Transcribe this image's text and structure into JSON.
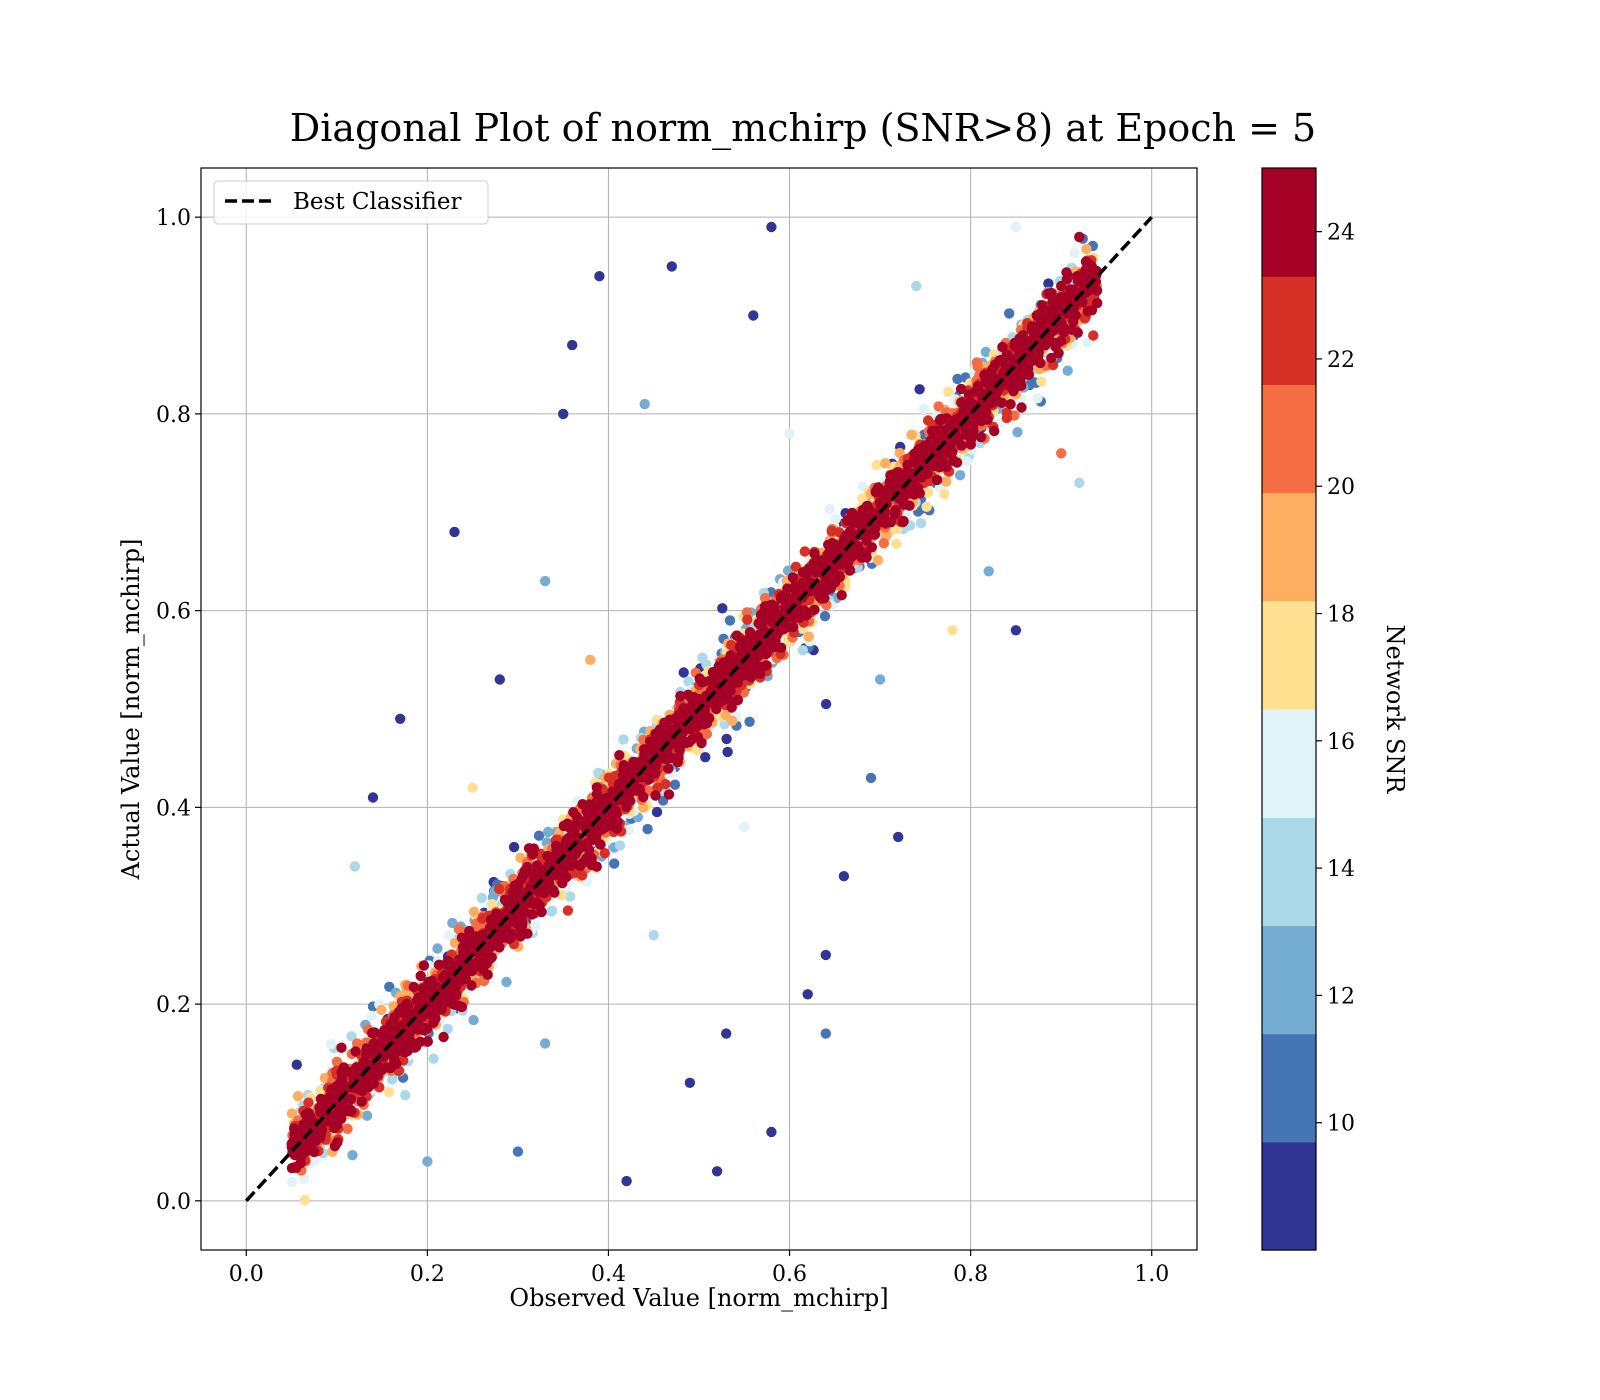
{
  "chart_data": {
    "type": "scatter",
    "title": "Diagonal Plot of norm_mchirp (SNR>8) at Epoch = 5",
    "xlabel": "Observed Value [norm_mchirp]",
    "ylabel": "Actual Value [norm_mchirp]",
    "xlim": [
      -0.05,
      1.05
    ],
    "ylim": [
      -0.05,
      1.05
    ],
    "xticks": [
      "0.0",
      "0.2",
      "0.4",
      "0.6",
      "0.8",
      "1.0"
    ],
    "yticks": [
      "0.0",
      "0.2",
      "0.4",
      "0.6",
      "0.8",
      "1.0"
    ],
    "grid": true,
    "legend": {
      "position": "upper-left",
      "entries": [
        {
          "label": "Best Classifier",
          "style": "dashed",
          "color": "#000000"
        }
      ]
    },
    "reference_line": {
      "name": "Best Classifier",
      "x": [
        0.0,
        1.0
      ],
      "y": [
        0.0,
        1.0
      ]
    },
    "colorbar": {
      "label": "Network SNR",
      "range": [
        8,
        25
      ],
      "ticks": [
        "10",
        "12",
        "14",
        "16",
        "18",
        "20",
        "22",
        "24"
      ],
      "tick_values": [
        10,
        12,
        14,
        16,
        18,
        20,
        22,
        24
      ],
      "colors": [
        "#313695",
        "#4575b4",
        "#74add1",
        "#abd9e9",
        "#e0f3f8",
        "#fee090",
        "#fdae61",
        "#f46d43",
        "#d73027",
        "#a50026"
      ]
    },
    "point_summary": {
      "description_source": "visible scatter of ~thousands of points along y=x; high SNR (dark red) tightly on diagonal, low SNR (blue) widely scattered",
      "x_range": [
        0.05,
        0.94
      ],
      "y_range": [
        0.0,
        1.0
      ]
    },
    "points": [
      [
        0.06,
        0.05,
        25
      ],
      [
        0.08,
        0.07,
        25
      ],
      [
        0.1,
        0.11,
        25
      ],
      [
        0.12,
        0.12,
        25
      ],
      [
        0.14,
        0.15,
        25
      ],
      [
        0.16,
        0.17,
        25
      ],
      [
        0.18,
        0.19,
        25
      ],
      [
        0.2,
        0.21,
        25
      ],
      [
        0.22,
        0.23,
        25
      ],
      [
        0.24,
        0.25,
        25
      ],
      [
        0.26,
        0.27,
        25
      ],
      [
        0.28,
        0.29,
        25
      ],
      [
        0.3,
        0.31,
        25
      ],
      [
        0.32,
        0.33,
        25
      ],
      [
        0.34,
        0.35,
        25
      ],
      [
        0.36,
        0.37,
        25
      ],
      [
        0.38,
        0.39,
        25
      ],
      [
        0.4,
        0.41,
        25
      ],
      [
        0.42,
        0.43,
        25
      ],
      [
        0.44,
        0.45,
        25
      ],
      [
        0.46,
        0.47,
        25
      ],
      [
        0.48,
        0.49,
        25
      ],
      [
        0.5,
        0.51,
        25
      ],
      [
        0.52,
        0.53,
        25
      ],
      [
        0.54,
        0.55,
        25
      ],
      [
        0.56,
        0.57,
        25
      ],
      [
        0.58,
        0.59,
        25
      ],
      [
        0.6,
        0.61,
        25
      ],
      [
        0.62,
        0.63,
        25
      ],
      [
        0.64,
        0.65,
        25
      ],
      [
        0.66,
        0.67,
        25
      ],
      [
        0.68,
        0.69,
        25
      ],
      [
        0.7,
        0.71,
        25
      ],
      [
        0.72,
        0.73,
        25
      ],
      [
        0.74,
        0.75,
        25
      ],
      [
        0.76,
        0.77,
        25
      ],
      [
        0.78,
        0.79,
        25
      ],
      [
        0.8,
        0.81,
        25
      ],
      [
        0.82,
        0.83,
        25
      ],
      [
        0.84,
        0.85,
        25
      ],
      [
        0.86,
        0.87,
        25
      ],
      [
        0.88,
        0.89,
        25
      ],
      [
        0.9,
        0.93,
        25
      ],
      [
        0.92,
        0.98,
        25
      ],
      [
        0.39,
        0.94,
        8
      ],
      [
        0.58,
        0.99,
        8
      ],
      [
        0.47,
        0.95,
        8
      ],
      [
        0.35,
        0.8,
        8
      ],
      [
        0.23,
        0.68,
        8
      ],
      [
        0.17,
        0.49,
        8
      ],
      [
        0.14,
        0.41,
        8
      ],
      [
        0.72,
        0.37,
        8
      ],
      [
        0.62,
        0.21,
        8
      ],
      [
        0.58,
        0.07,
        8
      ],
      [
        0.49,
        0.12,
        8
      ],
      [
        0.42,
        0.02,
        8
      ],
      [
        0.85,
        0.58,
        8
      ],
      [
        0.66,
        0.33,
        8
      ],
      [
        0.53,
        0.17,
        8
      ],
      [
        0.28,
        0.53,
        8
      ],
      [
        0.36,
        0.87,
        8
      ],
      [
        0.56,
        0.9,
        8
      ],
      [
        0.64,
        0.25,
        8
      ],
      [
        0.52,
        0.03,
        8
      ],
      [
        0.64,
        0.17,
        11
      ],
      [
        0.92,
        0.73,
        14
      ],
      [
        0.69,
        0.43,
        11
      ],
      [
        0.33,
        0.63,
        12
      ],
      [
        0.44,
        0.81,
        13
      ],
      [
        0.12,
        0.34,
        14
      ],
      [
        0.25,
        0.42,
        17
      ],
      [
        0.38,
        0.55,
        19
      ],
      [
        0.6,
        0.78,
        15
      ],
      [
        0.74,
        0.93,
        14
      ],
      [
        0.85,
        0.99,
        16
      ],
      [
        0.45,
        0.27,
        14
      ],
      [
        0.33,
        0.16,
        12
      ],
      [
        0.3,
        0.05,
        10
      ],
      [
        0.2,
        0.04,
        13
      ],
      [
        0.7,
        0.53,
        12
      ],
      [
        0.82,
        0.64,
        13
      ],
      [
        0.55,
        0.38,
        15
      ],
      [
        0.78,
        0.58,
        18
      ],
      [
        0.9,
        0.76,
        20
      ]
    ]
  }
}
